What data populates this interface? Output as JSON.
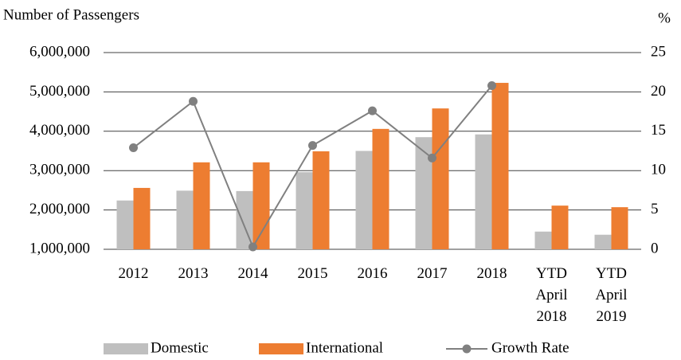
{
  "chart_data": {
    "type": "bar",
    "y_label": "Number of Passengers",
    "y2_label": "%",
    "categories": [
      "2012",
      "2013",
      "2014",
      "2015",
      "2016",
      "2017",
      "2018",
      "YTD April 2018",
      "YTD April 2019"
    ],
    "series": [
      {
        "name": "Domestic",
        "type": "bar",
        "color": "#bfbfbf",
        "values": [
          2240000,
          2490000,
          2480000,
          2960000,
          3500000,
          3850000,
          3920000,
          1450000,
          1370000
        ]
      },
      {
        "name": "International",
        "type": "bar",
        "color": "#ed7d31",
        "values": [
          2560000,
          3210000,
          3210000,
          3490000,
          4060000,
          4580000,
          5230000,
          2110000,
          2070000
        ]
      },
      {
        "name": "Growth Rate",
        "type": "line",
        "axis": "y2",
        "color": "#808080",
        "values": [
          12.9,
          18.8,
          0.3,
          13.2,
          17.6,
          11.6,
          20.8,
          null,
          null
        ]
      }
    ],
    "ylim": [
      1000000,
      6000000
    ],
    "yticks": [
      {
        "value": 1000000,
        "label": "1,000,000"
      },
      {
        "value": 2000000,
        "label": "2,000,000"
      },
      {
        "value": 3000000,
        "label": "3,000,000"
      },
      {
        "value": 4000000,
        "label": "4,000,000"
      },
      {
        "value": 5000000,
        "label": "5,000,000"
      },
      {
        "value": 6000000,
        "label": "6,000,000"
      }
    ],
    "y2lim": [
      0,
      25
    ],
    "y2ticks": [
      0,
      5,
      10,
      15,
      20,
      25
    ],
    "grid": true,
    "legend": "bottom"
  }
}
